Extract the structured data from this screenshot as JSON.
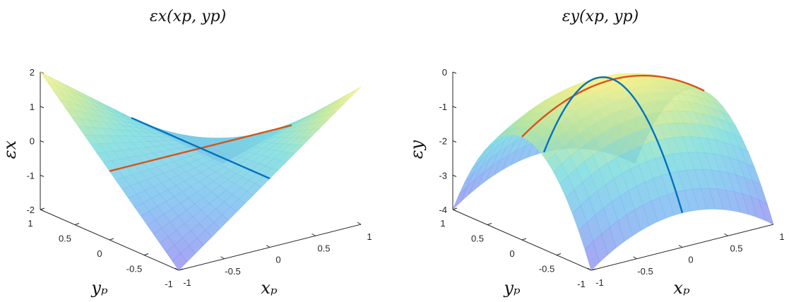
{
  "chart_data": [
    {
      "type": "surface",
      "title": "εx(xp, yp)",
      "xlabel": "xp",
      "ylabel": "yp",
      "zlabel": "εx",
      "xlim": [
        -1,
        1
      ],
      "ylim": [
        -1,
        1
      ],
      "zlim": [
        -2,
        2
      ],
      "xticks": [
        "-1",
        "-0.5",
        "0",
        "0.5",
        "1"
      ],
      "yticks": [
        "-1",
        "-0.5",
        "0",
        "0.5",
        "1"
      ],
      "zticks": [
        "-2",
        "-1",
        "0",
        "1",
        "2"
      ],
      "surface": "z = -2*x*y",
      "lines": [
        {
          "color": "#d95319",
          "along": "y = 0"
        },
        {
          "color": "#0072bd",
          "along": "x = 0"
        }
      ],
      "colormap": "parula",
      "grid": false
    },
    {
      "type": "surface",
      "title": "εy(xp, yp)",
      "xlabel": "xp",
      "ylabel": "yp",
      "zlabel": "εy",
      "xlim": [
        -1,
        1
      ],
      "ylim": [
        -1,
        1
      ],
      "zlim": [
        -4,
        0
      ],
      "xticks": [
        "-1",
        "-0.5",
        "0",
        "0.5",
        "1"
      ],
      "yticks": [
        "-1",
        "-0.5",
        "0",
        "0.5",
        "1"
      ],
      "zticks": [
        "-4",
        "-3",
        "-2",
        "-1",
        "0"
      ],
      "surface": "z = -x^2 - 3*y^2",
      "lines": [
        {
          "color": "#d95319",
          "along": "y = 0"
        },
        {
          "color": "#0072bd",
          "along": "x = 0"
        }
      ],
      "colormap": "parula",
      "grid": false
    }
  ]
}
